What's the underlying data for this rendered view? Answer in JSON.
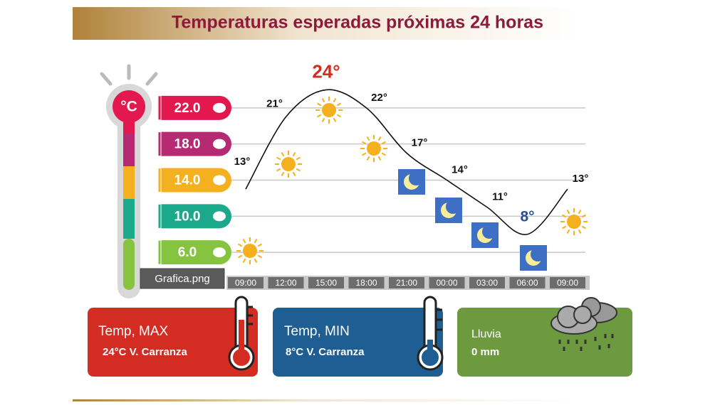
{
  "chart_data": {
    "type": "line",
    "title": "Temperaturas esperadas próximas 24 horas",
    "y_label": "°C",
    "categories": [
      "09:00",
      "12:00",
      "15:00",
      "18:00",
      "21:00",
      "00:00",
      "03:00",
      "06:00",
      "09:00"
    ],
    "values": [
      13,
      21,
      24,
      22,
      17,
      14,
      11,
      8,
      13
    ],
    "value_labels": [
      "13°",
      "21°",
      "24°",
      "22°",
      "17°",
      "14°",
      "11°",
      "8°",
      "13°"
    ],
    "color": "#111111",
    "ylim": [
      2,
      26
    ],
    "yticks": [
      {
        "value": 22,
        "label": "22.0"
      },
      {
        "value": 18,
        "label": "18.0"
      },
      {
        "value": 14,
        "label": "14.0"
      },
      {
        "value": 10,
        "label": "10.0"
      },
      {
        "value": 6,
        "label": "6.0"
      }
    ],
    "tick_colors": [
      "#e2184f",
      "#b62a74",
      "#f4b01e",
      "#1ca88b",
      "#86c440"
    ],
    "grid": true
  },
  "tooltip": "Grafica.png",
  "cards": [
    {
      "title": "Temp, MAX",
      "text": "24°C  V. Carranza"
    },
    {
      "title": "Temp, MIN",
      "text": "8°C  V. Carranza"
    },
    {
      "title": "Lluvia",
      "text": "0 mm"
    }
  ]
}
